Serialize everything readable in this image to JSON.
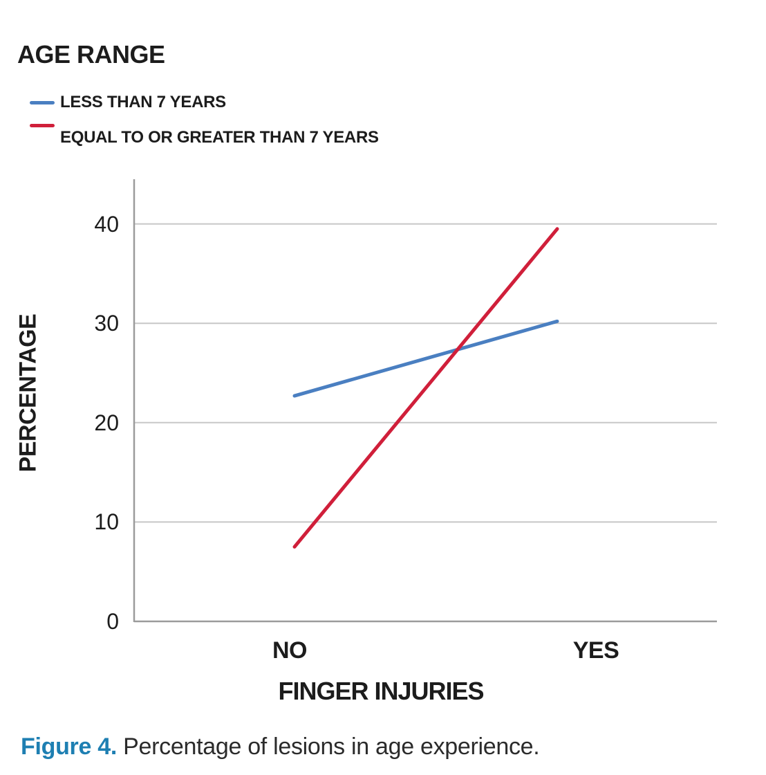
{
  "legend": {
    "title": "AGE RANGE",
    "items": [
      {
        "label": "LESS THAN 7 YEARS",
        "color": "#4a7fc1"
      },
      {
        "label": "EQUAL TO OR GREATER THAN 7 YEARS",
        "color": "#d01f3a"
      }
    ]
  },
  "caption": {
    "label": "Figure 4.",
    "text": " Percentage of lesions in age experience.",
    "label_color": "#1e7fb2"
  },
  "colors": {
    "grid": "#c7c7c7",
    "axis": "#9b9b9b",
    "text": "#1c1c1c",
    "series_blue": "#4a7fc1",
    "series_red": "#d01f3a"
  },
  "chart_data": {
    "type": "line",
    "title": "AGE RANGE",
    "categories": [
      "NO",
      "YES"
    ],
    "series": [
      {
        "name": "LESS THAN 7 YEARS",
        "color": "#4a7fc1",
        "values": [
          22.7,
          30.2
        ]
      },
      {
        "name": "EQUAL TO OR GREATER THAN 7 YEARS",
        "color": "#d01f3a",
        "values": [
          7.5,
          39.5
        ]
      }
    ],
    "xlabel": "FINGER INJURIES",
    "ylabel": "PERCENTAGE",
    "ylim": [
      0,
      44.5
    ],
    "yticks": [
      0,
      10,
      20,
      30,
      40
    ],
    "grid": true,
    "legend_position": "top-left"
  }
}
